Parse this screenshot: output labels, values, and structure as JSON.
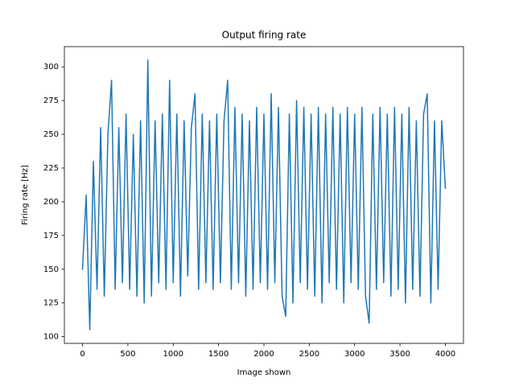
{
  "chart_data": {
    "type": "line",
    "title": "Output firing rate",
    "x_label": "Image shown",
    "y_label": "Firing rate [Hz]",
    "xlim": [
      -200,
      4200
    ],
    "ylim": [
      95,
      315
    ],
    "xticks": [
      0,
      500,
      1000,
      1500,
      2000,
      2500,
      3000,
      3500,
      4000
    ],
    "yticks": [
      100,
      125,
      150,
      175,
      200,
      225,
      250,
      275,
      300
    ],
    "grid": false,
    "series": [
      {
        "name": "Output firing rate",
        "color": "#1f77b4",
        "x": [
          0,
          40,
          80,
          120,
          160,
          200,
          240,
          280,
          320,
          360,
          400,
          440,
          480,
          520,
          560,
          600,
          640,
          680,
          720,
          760,
          800,
          840,
          880,
          920,
          960,
          1000,
          1040,
          1080,
          1120,
          1160,
          1200,
          1240,
          1280,
          1320,
          1360,
          1400,
          1440,
          1480,
          1520,
          1560,
          1600,
          1640,
          1680,
          1720,
          1760,
          1800,
          1840,
          1880,
          1920,
          1960,
          2000,
          2040,
          2080,
          2120,
          2160,
          2200,
          2240,
          2280,
          2320,
          2360,
          2400,
          2440,
          2480,
          2520,
          2560,
          2600,
          2640,
          2680,
          2720,
          2760,
          2800,
          2840,
          2880,
          2920,
          2960,
          3000,
          3040,
          3080,
          3120,
          3160,
          3200,
          3240,
          3280,
          3320,
          3360,
          3400,
          3440,
          3480,
          3520,
          3560,
          3600,
          3640,
          3680,
          3720,
          3760,
          3800,
          3840,
          3880,
          3920,
          3960,
          4000
        ],
        "values": [
          150,
          205,
          105,
          230,
          135,
          255,
          130,
          250,
          290,
          135,
          255,
          140,
          265,
          135,
          250,
          130,
          260,
          125,
          305,
          130,
          260,
          140,
          265,
          135,
          290,
          140,
          265,
          130,
          260,
          145,
          255,
          280,
          135,
          265,
          140,
          260,
          135,
          265,
          140,
          260,
          290,
          135,
          270,
          140,
          265,
          130,
          260,
          135,
          270,
          140,
          265,
          135,
          280,
          140,
          270,
          130,
          115,
          265,
          125,
          275,
          140,
          270,
          135,
          265,
          130,
          270,
          125,
          265,
          140,
          270,
          135,
          265,
          125,
          270,
          140,
          265,
          135,
          270,
          130,
          110,
          265,
          135,
          270,
          140,
          265,
          130,
          270,
          135,
          265,
          125,
          270,
          135,
          260,
          130,
          265,
          280,
          125,
          260,
          135,
          260,
          210
        ]
      }
    ]
  }
}
